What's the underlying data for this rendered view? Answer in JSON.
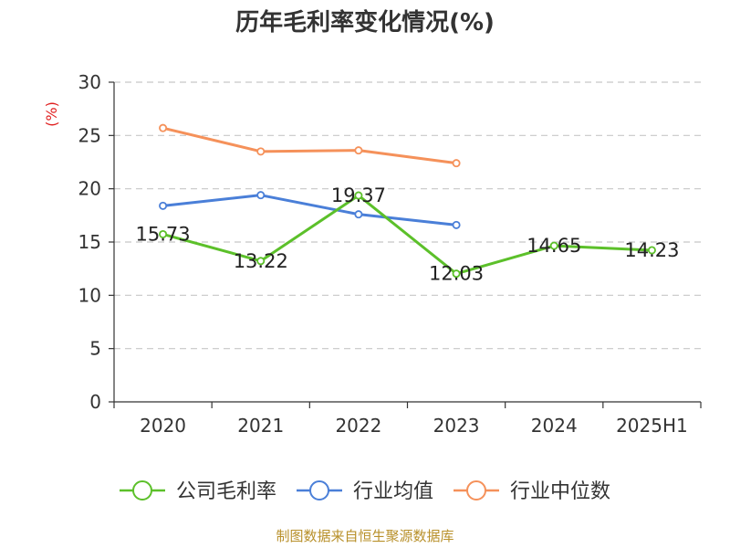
{
  "chart_data": {
    "type": "line",
    "title": "历年毛利率变化情况(%)",
    "unit_label": "(%)",
    "categories": [
      "2020",
      "2021",
      "2022",
      "2023",
      "2024",
      "2025H1"
    ],
    "ylim": [
      0,
      30
    ],
    "yticks": [
      0,
      5,
      10,
      15,
      20,
      25,
      30
    ],
    "grid": "horizontal-dashed",
    "legend_position": "bottom",
    "series": [
      {
        "name": "公司毛利率",
        "color": "#5cc02a",
        "values": [
          15.73,
          13.22,
          19.37,
          12.03,
          14.65,
          14.23
        ],
        "labels": [
          "15.73",
          "13.22",
          "19.37",
          "12.03",
          "14.65",
          "14.23"
        ]
      },
      {
        "name": "行业均值",
        "color": "#4a7fd8",
        "values": [
          18.4,
          19.4,
          17.6,
          16.6,
          null,
          null
        ]
      },
      {
        "name": "行业中位数",
        "color": "#f5915a",
        "values": [
          25.7,
          23.5,
          23.6,
          22.4,
          null,
          null
        ]
      }
    ]
  },
  "footer": {
    "source": "制图数据来自恒生聚源数据库"
  }
}
